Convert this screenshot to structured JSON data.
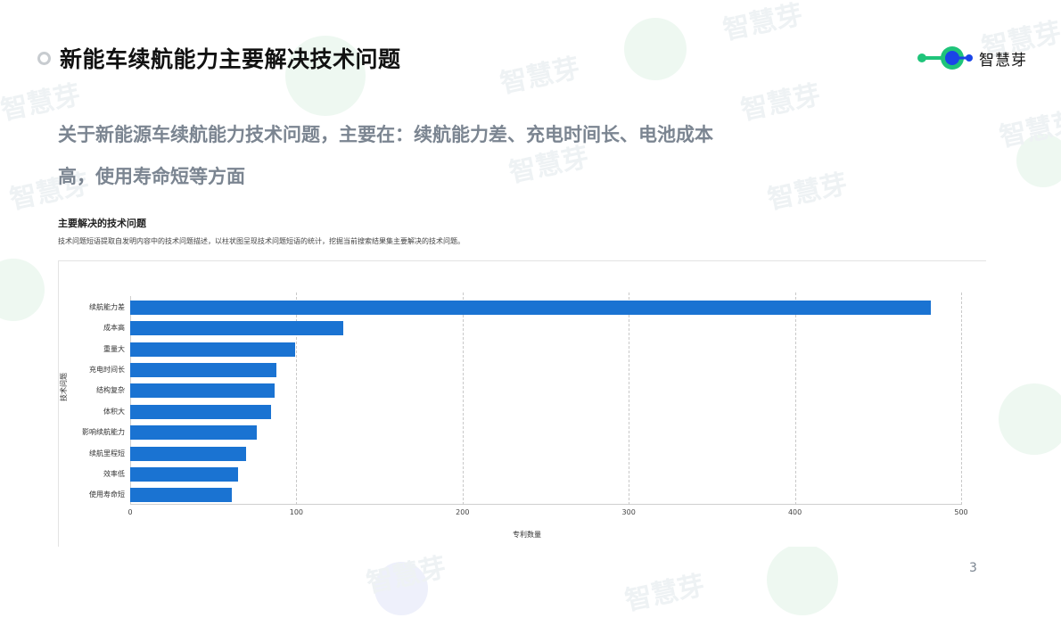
{
  "slide": {
    "title": "新能车续航能力主要解决技术问题",
    "summary": "关于新能源车续航能力技术问题，主要在：续航能力差、充电时间长、电池成本高，使用寿命短等方面",
    "page_number": "3",
    "logo": {
      "text": "智慧芽",
      "icon": "zhihuiya-logo-icon",
      "colors": {
        "green": "#1fc47a",
        "blue": "#1a45e8"
      }
    },
    "watermark": "智慧芽"
  },
  "chart_section": {
    "title": "主要解决的技术问题",
    "description": "技术问题短语提取自发明内容中的技术问题描述，以柱状图呈现技术问题短语的统计，挖掘当前搜索结果集主要解决的技术问题。"
  },
  "chart_data": {
    "type": "bar",
    "orientation": "horizontal",
    "title": "主要解决的技术问题",
    "xlabel": "专利数量",
    "ylabel": "技术问题",
    "categories": [
      "续航能力差",
      "成本高",
      "重量大",
      "充电时间长",
      "结构复杂",
      "体积大",
      "影响续航能力",
      "续航里程短",
      "效率低",
      "使用寿命短"
    ],
    "values": [
      482,
      128,
      99,
      88,
      87,
      85,
      76,
      70,
      65,
      61
    ],
    "xlim": [
      0,
      500
    ],
    "xticks": [
      "0",
      "100",
      "200",
      "300",
      "400",
      "500"
    ],
    "grid": true,
    "bar_color": "#1a73d2",
    "legend": null
  }
}
